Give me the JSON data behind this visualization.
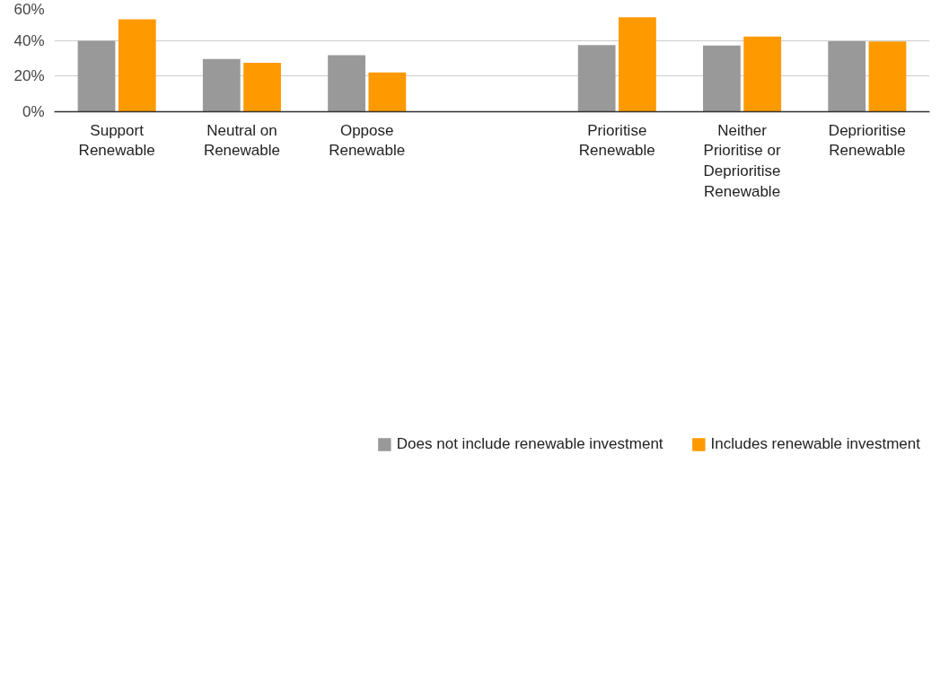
{
  "chart_data": {
    "type": "bar",
    "categories": [
      "Support Renewable",
      "Neutral on Renewable",
      "Oppose Renewable",
      null,
      "Prioritise Renewable",
      "Neither Prioritise or Deprioritise Renewable",
      "Deprioritise Renewable"
    ],
    "series": [
      {
        "name": "Does not include renewable investment",
        "color": "#999999",
        "values": [
          39.8,
          29.6,
          31.8,
          null,
          37.4,
          37.2,
          39.6
        ]
      },
      {
        "name": "Includes renewable investment",
        "color": "#ff9900",
        "values": [
          51.9,
          27.5,
          22.1,
          null,
          53.1,
          42.2,
          39.4
        ]
      }
    ],
    "ylim": [
      0,
      60
    ],
    "yticks": [
      {
        "value": 0,
        "label": "0%"
      },
      {
        "value": 20,
        "label": "20%"
      },
      {
        "value": 40,
        "label": "40%"
      },
      {
        "value": 60,
        "label": "60%"
      }
    ],
    "grid": "y",
    "legend": "bottom"
  }
}
